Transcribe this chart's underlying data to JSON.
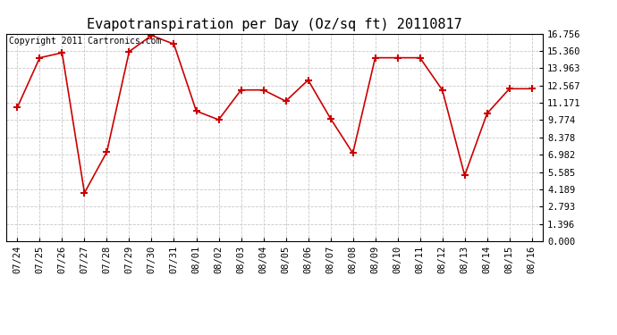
{
  "title": "Evapotranspiration per Day (Oz/sq ft) 20110817",
  "copyright": "Copyright 2011 Cartronics.com",
  "x_labels": [
    "07/24",
    "07/25",
    "07/26",
    "07/27",
    "07/28",
    "07/29",
    "07/30",
    "07/31",
    "08/01",
    "08/02",
    "08/03",
    "08/04",
    "08/05",
    "08/06",
    "08/07",
    "08/08",
    "08/09",
    "08/10",
    "08/11",
    "08/12",
    "08/13",
    "08/14",
    "08/15",
    "08/16"
  ],
  "y_values": [
    10.8,
    14.8,
    15.2,
    3.9,
    7.2,
    15.3,
    16.6,
    15.9,
    10.5,
    9.8,
    12.2,
    12.2,
    11.3,
    13.0,
    9.9,
    7.1,
    14.8,
    14.8,
    14.8,
    12.2,
    5.3,
    10.3,
    12.3,
    12.3
  ],
  "y_ticks": [
    0.0,
    1.396,
    2.793,
    4.189,
    5.585,
    6.982,
    8.378,
    9.774,
    11.171,
    12.567,
    13.963,
    15.36,
    16.756
  ],
  "line_color": "#cc0000",
  "marker": "+",
  "marker_color": "#cc0000",
  "bg_color": "#ffffff",
  "grid_color": "#c8c8c8",
  "title_fontsize": 11,
  "copyright_fontsize": 7,
  "tick_fontsize": 7.5
}
